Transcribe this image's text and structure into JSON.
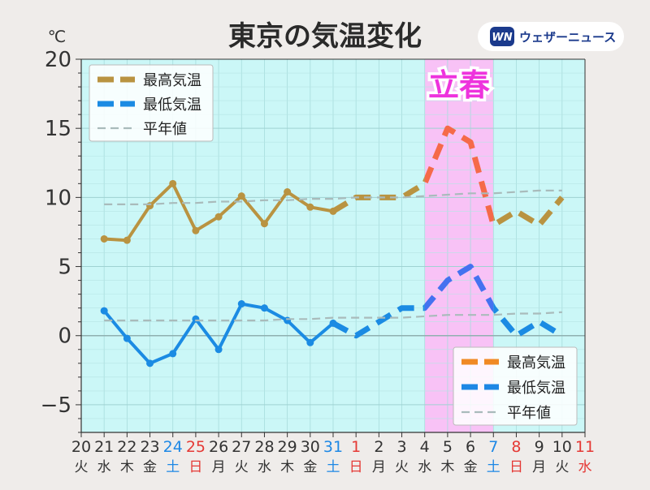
{
  "title": "東京の気温変化",
  "brand": {
    "logo_mark": "WN",
    "name": "ウェザーニュース"
  },
  "colors": {
    "plot_bg": "#cbf7f7",
    "highlight_bg": "#f8c2f6",
    "high_observed": "#b99341",
    "high_forecast_highlight": "#f56a49",
    "low_observed": "#1b8be3",
    "low_forecast_highlight": "#4472f0",
    "normal": "#a9bbbb",
    "weekday_text": "#333333",
    "saturday_text": "#1e88e5",
    "sunday_text": "#e53935",
    "legend_high_swatch": "#f08a24",
    "legend_low_swatch": "#1e88e5",
    "annotation_text": "#ee33dd"
  },
  "chart_data": {
    "type": "line",
    "title": "東京の気温変化",
    "ylabel": "℃",
    "xlabel": "",
    "ylim": [
      -7,
      20
    ],
    "yticks": [
      20,
      15,
      10,
      5,
      0,
      -5
    ],
    "ytick_labels": [
      "20",
      "15",
      "10",
      "5",
      "0",
      "−5"
    ],
    "grid": true,
    "x_categories": [
      "20",
      "21",
      "22",
      "23",
      "24",
      "25",
      "26",
      "27",
      "28",
      "29",
      "30",
      "31",
      "1",
      "2",
      "3",
      "4",
      "5",
      "6",
      "7",
      "8",
      "9",
      "10",
      "11"
    ],
    "x_weekdays": [
      "火",
      "水",
      "木",
      "金",
      "土",
      "日",
      "月",
      "火",
      "水",
      "木",
      "金",
      "土",
      "日",
      "月",
      "火",
      "水",
      "木",
      "金",
      "土",
      "日",
      "月",
      "火",
      "水"
    ],
    "x_daytype": [
      "w",
      "w",
      "w",
      "w",
      "sat",
      "sun",
      "w",
      "w",
      "w",
      "w",
      "w",
      "sat",
      "sun",
      "w",
      "w",
      "w",
      "w",
      "w",
      "sat",
      "sun",
      "w",
      "w",
      "sun"
    ],
    "highlight_range": [
      "4",
      "7"
    ],
    "annotation": "立春",
    "series": [
      {
        "name": "最高気温",
        "style": "solid-markers",
        "x": [
          "21",
          "22",
          "23",
          "24",
          "25",
          "26",
          "27",
          "28",
          "29",
          "30",
          "31"
        ],
        "values": [
          7.0,
          6.9,
          9.4,
          11.0,
          7.6,
          8.6,
          10.1,
          8.1,
          10.4,
          9.3,
          9.0
        ]
      },
      {
        "name": "最高気温",
        "style": "dashed",
        "x": [
          "31",
          "1",
          "2",
          "3",
          "4",
          "5",
          "6",
          "7",
          "8",
          "9",
          "10"
        ],
        "values": [
          9.0,
          10.0,
          10.0,
          10.0,
          11.0,
          15.0,
          14.0,
          8.0,
          9.0,
          8.0,
          10.0
        ]
      },
      {
        "name": "最低気温",
        "style": "solid-markers",
        "x": [
          "21",
          "22",
          "23",
          "24",
          "25",
          "26",
          "27",
          "28",
          "29",
          "30",
          "31"
        ],
        "values": [
          1.8,
          -0.2,
          -2.0,
          -1.3,
          1.2,
          -1.0,
          2.3,
          2.0,
          1.1,
          -0.5,
          0.9
        ]
      },
      {
        "name": "最低気温",
        "style": "dashed",
        "x": [
          "31",
          "1",
          "2",
          "3",
          "4",
          "5",
          "6",
          "7",
          "8",
          "9",
          "10"
        ],
        "values": [
          0.9,
          0.0,
          1.0,
          2.0,
          2.0,
          4.0,
          5.0,
          2.0,
          0.0,
          1.0,
          0.0
        ]
      },
      {
        "name": "平年値",
        "style": "normal-high",
        "x": [
          "21",
          "22",
          "23",
          "24",
          "25",
          "26",
          "27",
          "28",
          "29",
          "30",
          "31",
          "1",
          "2",
          "3",
          "4",
          "5",
          "6",
          "7",
          "8",
          "9",
          "10"
        ],
        "values": [
          9.5,
          9.5,
          9.5,
          9.6,
          9.6,
          9.7,
          9.7,
          9.8,
          9.8,
          9.9,
          9.9,
          10.0,
          10.0,
          10.0,
          10.1,
          10.2,
          10.3,
          10.3,
          10.4,
          10.5,
          10.5
        ]
      },
      {
        "name": "平年値",
        "style": "normal-low",
        "x": [
          "21",
          "22",
          "23",
          "24",
          "25",
          "26",
          "27",
          "28",
          "29",
          "30",
          "31",
          "1",
          "2",
          "3",
          "4",
          "5",
          "6",
          "7",
          "8",
          "9",
          "10"
        ],
        "values": [
          1.1,
          1.1,
          1.1,
          1.1,
          1.1,
          1.1,
          1.1,
          1.1,
          1.2,
          1.2,
          1.3,
          1.3,
          1.3,
          1.3,
          1.4,
          1.5,
          1.5,
          1.5,
          1.6,
          1.6,
          1.7
        ]
      }
    ],
    "legends": [
      {
        "position": "top-left",
        "entries": [
          {
            "label": "最高気温",
            "swatch": "high_observed",
            "dash": "long"
          },
          {
            "label": "最低気温",
            "swatch": "low_observed",
            "dash": "long"
          },
          {
            "label": "平年値",
            "swatch": "normal",
            "dash": "thin"
          }
        ]
      },
      {
        "position": "bottom-right",
        "entries": [
          {
            "label": "最高気温",
            "swatch": "legend_high_swatch",
            "dash": "long"
          },
          {
            "label": "最低気温",
            "swatch": "legend_low_swatch",
            "dash": "long"
          },
          {
            "label": "平年値",
            "swatch": "normal",
            "dash": "thin"
          }
        ]
      }
    ]
  }
}
